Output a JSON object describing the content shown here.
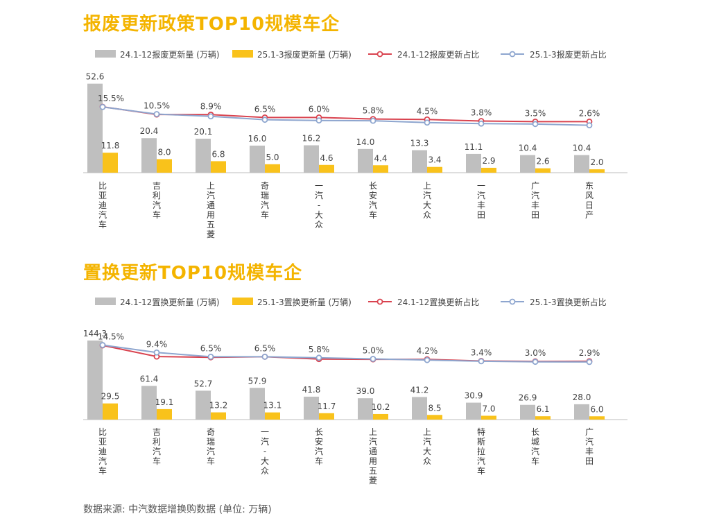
{
  "colors": {
    "title": "#f4b400",
    "bar_2024": "#bfbfbf",
    "bar_2025": "#f9c21b",
    "line_2024": "#d9434f",
    "line_2025": "#8ea6cf"
  },
  "chart_data": [
    {
      "type": "bar",
      "title": "报废更新政策TOP10规模车企",
      "legend": {
        "placement": "top",
        "entries": [
          "24.1-12报废更新量 (万辆)",
          "25.1-3报废更新量 (万辆)",
          "24.1-12报废更新占比",
          "25.1-3报废更新占比"
        ]
      },
      "categories": [
        "比亚迪汽车",
        "吉利汽车",
        "上汽通用五菱",
        "奇瑞汽车",
        "一汽-大众",
        "长安汽车",
        "上汽大众",
        "一汽丰田",
        "广汽丰田",
        "东风日产"
      ],
      "series": [
        {
          "name": "24.1-12报废更新量 (万辆)",
          "kind": "bar",
          "values": [
            52.6,
            20.4,
            20.1,
            16.0,
            16.2,
            14.0,
            13.3,
            11.1,
            10.4,
            10.4
          ]
        },
        {
          "name": "25.1-3报废更新量 (万辆)",
          "kind": "bar",
          "values": [
            11.8,
            8.0,
            6.8,
            5.0,
            4.6,
            4.4,
            3.4,
            2.9,
            2.6,
            2.0
          ]
        },
        {
          "name": "24.1-12报废更新占比",
          "kind": "line",
          "values": [
            15.6,
            10.2,
            10.1,
            8.1,
            8.1,
            7.0,
            6.7,
            5.6,
            5.2,
            5.2
          ]
        },
        {
          "name": "25.1-3报废更新占比",
          "kind": "line",
          "values": [
            15.5,
            10.5,
            8.9,
            6.5,
            6.0,
            5.8,
            4.5,
            3.8,
            3.5,
            2.6
          ]
        }
      ],
      "labels": [
        "15.5%",
        "10.5%",
        "8.9%",
        "6.5%",
        "6.0%",
        "5.8%",
        "4.5%",
        "3.8%",
        "3.5%",
        "2.6%"
      ]
    },
    {
      "type": "bar",
      "title": "置换更新TOP10规模车企",
      "legend": {
        "placement": "top",
        "entries": [
          "24.1-12置换更新量 (万辆)",
          "25.1-3置换更新量 (万辆)",
          "24.1-12置换更新占比",
          "25.1-3置换更新占比"
        ]
      },
      "categories": [
        "比亚迪汽车",
        "吉利汽车",
        "奇瑞汽车",
        "一汽-大众",
        "长安汽车",
        "上汽通用五菱",
        "上汽大众",
        "特斯拉汽车",
        "长城汽车",
        "广汽丰田"
      ],
      "series": [
        {
          "name": "24.1-12置换更新量 (万辆)",
          "kind": "bar",
          "values": [
            144.3,
            61.4,
            52.7,
            57.9,
            41.8,
            39.0,
            41.2,
            30.9,
            26.9,
            28.0
          ]
        },
        {
          "name": "25.1-3置换更新量 (万辆)",
          "kind": "bar",
          "values": [
            29.5,
            19.1,
            13.2,
            13.1,
            11.7,
            10.2,
            8.5,
            7.0,
            6.1,
            6.0
          ]
        },
        {
          "name": "24.1-12置换更新占比",
          "kind": "line",
          "values": [
            14.3,
            6.6,
            6.1,
            6.5,
            4.9,
            4.7,
            4.7,
            3.6,
            3.3,
            3.4
          ]
        },
        {
          "name": "25.1-3置换更新占比",
          "kind": "line",
          "values": [
            14.5,
            9.4,
            6.5,
            6.5,
            5.8,
            5.0,
            4.2,
            3.4,
            3.0,
            2.9
          ]
        }
      ],
      "labels": [
        "14.5%",
        "9.4%",
        "6.5%",
        "6.5%",
        "5.8%",
        "5.0%",
        "4.2%",
        "3.4%",
        "3.0%",
        "2.9%"
      ]
    }
  ],
  "footer": {
    "source": "数据来源: 中汽数据增换购数据 (单位: 万辆)"
  }
}
